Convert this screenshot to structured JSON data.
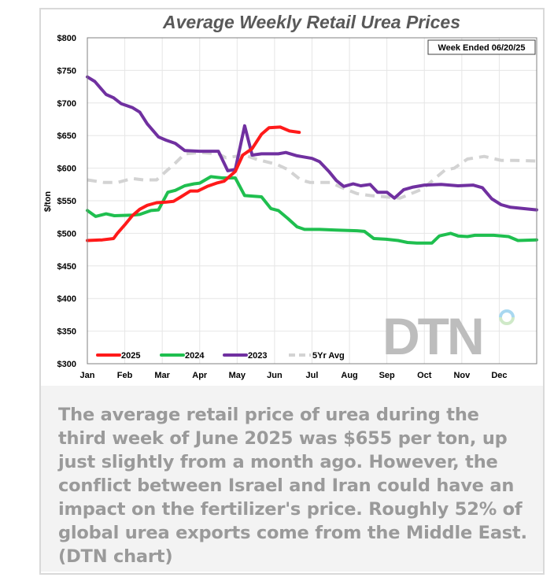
{
  "chart_data": {
    "type": "line",
    "title": "Average Weekly Retail Urea Prices",
    "annotation": "Week Ended 06/20/25",
    "ylabel": "$/ton",
    "xlabel": "",
    "ylim": [
      300,
      800
    ],
    "xlim": [
      0,
      12
    ],
    "yticks": [
      "$300",
      "$350",
      "$400",
      "$450",
      "$500",
      "$550",
      "$600",
      "$650",
      "$700",
      "$750",
      "$800"
    ],
    "ytick_values": [
      300,
      350,
      400,
      450,
      500,
      550,
      600,
      650,
      700,
      750,
      800
    ],
    "xticks": [
      "Jan",
      "Feb",
      "Mar",
      "Apr",
      "May",
      "Jun",
      "Jul",
      "Aug",
      "Sep",
      "Oct",
      "Nov",
      "Dec"
    ],
    "grid": true,
    "legend_position": "bottom-left",
    "watermark": "DTN",
    "series": [
      {
        "name": "2025",
        "color": "#ff1a1a",
        "dash": false,
        "points": [
          [
            0,
            489
          ],
          [
            0.4,
            490
          ],
          [
            0.7,
            492
          ],
          [
            0.8,
            500
          ],
          [
            1.0,
            513
          ],
          [
            1.2,
            527
          ],
          [
            1.4,
            537
          ],
          [
            1.6,
            543
          ],
          [
            1.85,
            547
          ],
          [
            2.1,
            548
          ],
          [
            2.3,
            549
          ],
          [
            2.5,
            556
          ],
          [
            2.75,
            565
          ],
          [
            2.95,
            565
          ],
          [
            3.2,
            572
          ],
          [
            3.45,
            577
          ],
          [
            3.65,
            580
          ],
          [
            3.95,
            595
          ],
          [
            4.15,
            620
          ],
          [
            4.4,
            630
          ],
          [
            4.65,
            652
          ],
          [
            4.85,
            662
          ],
          [
            5.15,
            663
          ],
          [
            5.4,
            657
          ],
          [
            5.66,
            655
          ]
        ]
      },
      {
        "name": "2024",
        "color": "#1fbf4f",
        "dash": false,
        "points": [
          [
            0,
            535
          ],
          [
            0.22,
            526
          ],
          [
            0.5,
            530
          ],
          [
            0.72,
            527
          ],
          [
            1.2,
            528
          ],
          [
            1.4,
            529
          ],
          [
            1.7,
            535
          ],
          [
            1.9,
            536
          ],
          [
            2.15,
            563
          ],
          [
            2.35,
            566
          ],
          [
            2.6,
            573
          ],
          [
            2.85,
            576
          ],
          [
            3.0,
            577
          ],
          [
            3.3,
            587
          ],
          [
            3.6,
            585
          ],
          [
            3.95,
            585
          ],
          [
            4.2,
            558
          ],
          [
            4.65,
            556
          ],
          [
            4.9,
            538
          ],
          [
            5.1,
            535
          ],
          [
            5.35,
            523
          ],
          [
            5.6,
            510
          ],
          [
            5.8,
            506
          ],
          [
            6.2,
            506
          ],
          [
            6.65,
            505
          ],
          [
            7.2,
            504
          ],
          [
            7.4,
            503
          ],
          [
            7.65,
            492
          ],
          [
            7.98,
            491
          ],
          [
            8.3,
            489
          ],
          [
            8.55,
            486
          ],
          [
            8.8,
            485
          ],
          [
            9.2,
            485
          ],
          [
            9.4,
            496
          ],
          [
            9.7,
            500
          ],
          [
            9.9,
            496
          ],
          [
            10.15,
            495
          ],
          [
            10.35,
            497
          ],
          [
            10.85,
            497
          ],
          [
            11.25,
            495
          ],
          [
            11.5,
            489
          ],
          [
            12,
            490
          ]
        ]
      },
      {
        "name": "2023",
        "color": "#7030a0",
        "dash": false,
        "points": [
          [
            0,
            740
          ],
          [
            0.2,
            733
          ],
          [
            0.5,
            713
          ],
          [
            0.7,
            708
          ],
          [
            0.9,
            699
          ],
          [
            1.2,
            693
          ],
          [
            1.4,
            686
          ],
          [
            1.6,
            668
          ],
          [
            1.9,
            648
          ],
          [
            2.1,
            643
          ],
          [
            2.35,
            638
          ],
          [
            2.6,
            627
          ],
          [
            3.0,
            626
          ],
          [
            3.5,
            626
          ],
          [
            3.75,
            596
          ],
          [
            3.95,
            598
          ],
          [
            4.2,
            665
          ],
          [
            4.4,
            620
          ],
          [
            4.65,
            622
          ],
          [
            5.1,
            622
          ],
          [
            5.3,
            624
          ],
          [
            5.6,
            619
          ],
          [
            6.0,
            615
          ],
          [
            6.2,
            610
          ],
          [
            6.45,
            595
          ],
          [
            6.65,
            581
          ],
          [
            6.85,
            572
          ],
          [
            7.1,
            576
          ],
          [
            7.3,
            573
          ],
          [
            7.55,
            575
          ],
          [
            7.75,
            563
          ],
          [
            8.0,
            563
          ],
          [
            8.2,
            554
          ],
          [
            8.45,
            567
          ],
          [
            8.7,
            571
          ],
          [
            9.0,
            574
          ],
          [
            9.45,
            575
          ],
          [
            9.9,
            573
          ],
          [
            10.3,
            574
          ],
          [
            10.55,
            570
          ],
          [
            10.8,
            553
          ],
          [
            11.05,
            544
          ],
          [
            11.3,
            540
          ],
          [
            12,
            536
          ]
        ]
      },
      {
        "name": "5Yr Avg",
        "color": "#d3d3d3",
        "dash": true,
        "points": [
          [
            0,
            582
          ],
          [
            0.45,
            578
          ],
          [
            0.8,
            578
          ],
          [
            1.2,
            584
          ],
          [
            1.5,
            582
          ],
          [
            1.85,
            582
          ],
          [
            2.1,
            595
          ],
          [
            2.3,
            605
          ],
          [
            2.6,
            622
          ],
          [
            3.0,
            624
          ],
          [
            3.5,
            622
          ],
          [
            3.7,
            616
          ],
          [
            4.2,
            620
          ],
          [
            4.55,
            613
          ],
          [
            5.05,
            606
          ],
          [
            5.35,
            598
          ],
          [
            5.7,
            582
          ],
          [
            5.95,
            578
          ],
          [
            6.5,
            578
          ],
          [
            6.8,
            570
          ],
          [
            7.2,
            561
          ],
          [
            7.55,
            558
          ],
          [
            7.95,
            556
          ],
          [
            8.35,
            554
          ],
          [
            8.95,
            568
          ],
          [
            9.3,
            585
          ],
          [
            9.55,
            597
          ],
          [
            9.8,
            600
          ],
          [
            10.15,
            614
          ],
          [
            10.6,
            618
          ],
          [
            11.05,
            612
          ],
          [
            11.4,
            612
          ],
          [
            12,
            611
          ]
        ]
      }
    ]
  },
  "caption": "The average retail price of urea during the third week of June 2025 was $655 per ton, up just slightly from a month ago. However, the conflict between Israel and Iran could have an impact on the fertilizer's price. Roughly 52% of global urea exports come from the Middle East. (DTN chart)"
}
